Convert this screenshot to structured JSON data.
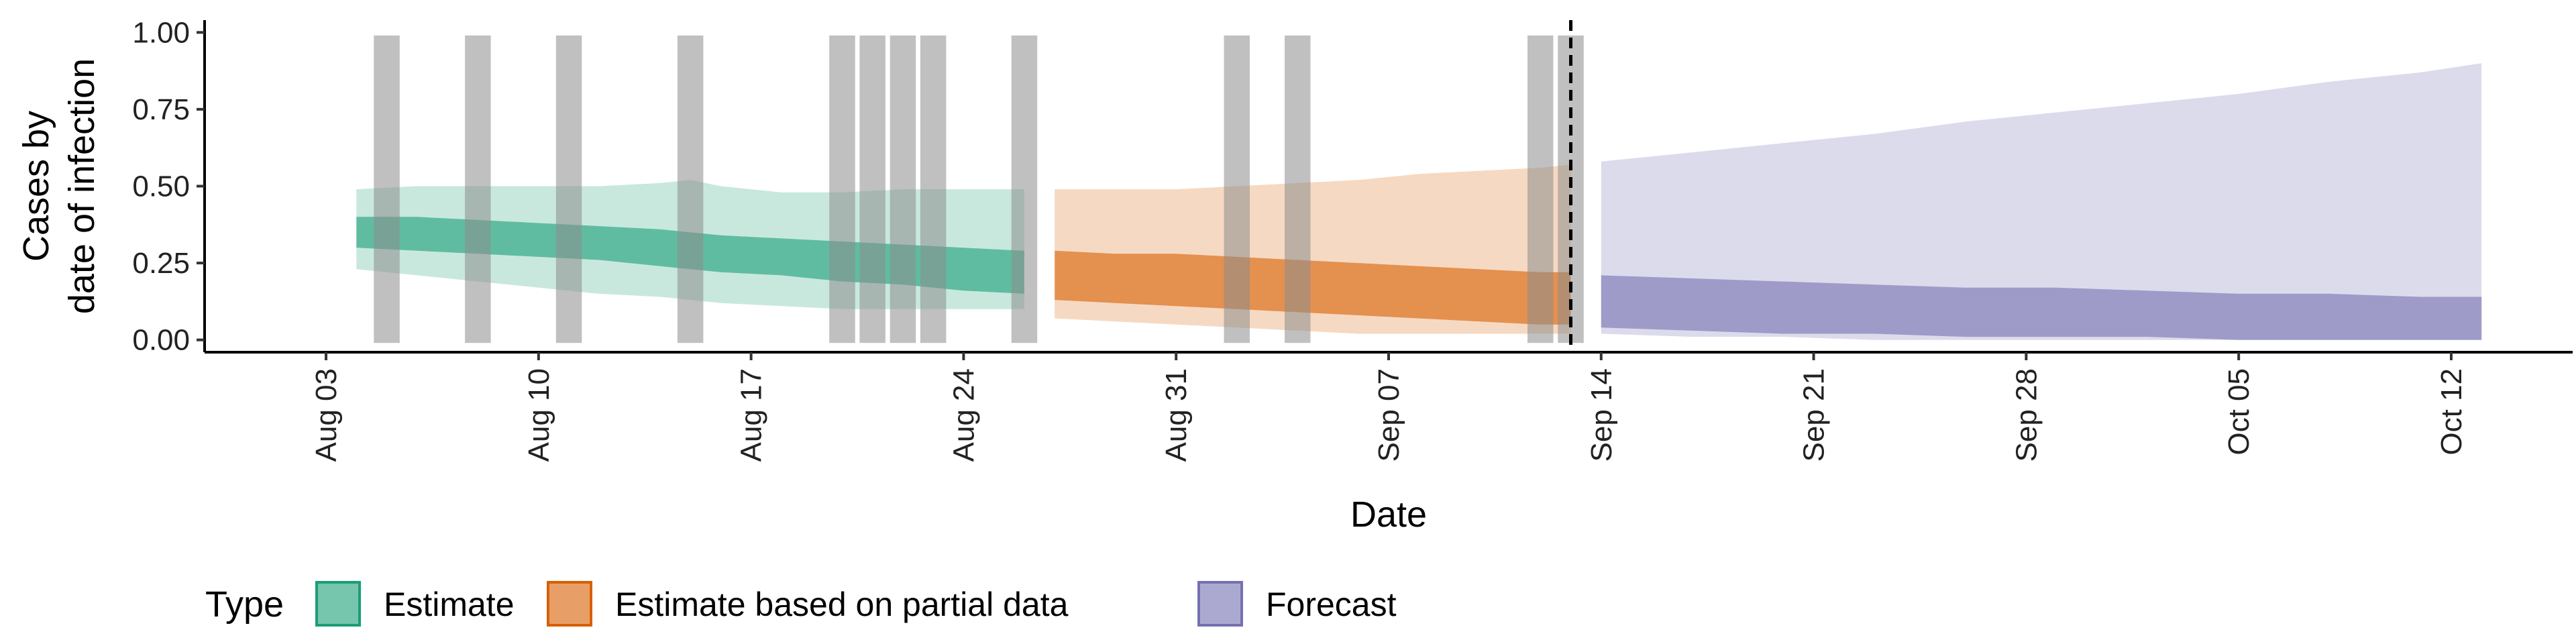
{
  "chart_data": {
    "type": "area",
    "xlabel": "Date",
    "ylabel_lines": [
      "Cases by",
      "date of infection"
    ],
    "xlim": [
      "2023-07-30",
      "2023-10-16"
    ],
    "ylim": [
      -0.04,
      1.04
    ],
    "y_ticks": [
      0.0,
      0.25,
      0.5,
      0.75,
      1.0
    ],
    "y_tick_labels": [
      "0.00",
      "0.25",
      "0.50",
      "0.75",
      "1.00"
    ],
    "x_ticks": [
      "2023-08-03",
      "2023-08-10",
      "2023-08-17",
      "2023-08-24",
      "2023-08-31",
      "2023-09-07",
      "2023-09-14",
      "2023-09-21",
      "2023-09-28",
      "2023-10-05",
      "2023-10-12"
    ],
    "x_tick_labels": [
      "Aug 03",
      "Aug 10",
      "Aug 17",
      "Aug 24",
      "Aug 31",
      "Sep 07",
      "Sep 14",
      "Sep 21",
      "Sep 28",
      "Oct 05",
      "Oct 12"
    ],
    "grid": false,
    "legend_position": "bottom-left",
    "legend": {
      "title": "Type",
      "entries": [
        {
          "label": "Estimate",
          "color": "#1b9e77"
        },
        {
          "label": "Estimate based on partial data",
          "color": "#d95f02"
        },
        {
          "label": "Forecast",
          "color": "#7570b3"
        }
      ]
    },
    "forecast_date": "2023-09-13",
    "highlight_dates": [
      "2023-08-05",
      "2023-08-08",
      "2023-08-11",
      "2023-08-15",
      "2023-08-20",
      "2023-08-21",
      "2023-08-22",
      "2023-08-23",
      "2023-08-26",
      "2023-09-02",
      "2023-09-04",
      "2023-09-12",
      "2023-09-13"
    ],
    "series": [
      {
        "name": "Estimate",
        "color": "#1b9e77",
        "x": [
          "2023-08-04",
          "2023-08-06",
          "2023-08-08",
          "2023-08-10",
          "2023-08-12",
          "2023-08-14",
          "2023-08-15",
          "2023-08-16",
          "2023-08-18",
          "2023-08-20",
          "2023-08-22",
          "2023-08-24",
          "2023-08-26"
        ],
        "lower_90": [
          0.23,
          0.21,
          0.19,
          0.17,
          0.15,
          0.14,
          0.13,
          0.12,
          0.11,
          0.1,
          0.1,
          0.1,
          0.1
        ],
        "lower_50": [
          0.3,
          0.29,
          0.28,
          0.27,
          0.26,
          0.24,
          0.23,
          0.22,
          0.21,
          0.19,
          0.18,
          0.16,
          0.15
        ],
        "upper_50": [
          0.4,
          0.4,
          0.39,
          0.38,
          0.37,
          0.36,
          0.35,
          0.34,
          0.33,
          0.32,
          0.31,
          0.3,
          0.29
        ],
        "upper_90": [
          0.49,
          0.5,
          0.5,
          0.5,
          0.5,
          0.51,
          0.52,
          0.5,
          0.48,
          0.48,
          0.49,
          0.49,
          0.49
        ]
      },
      {
        "name": "Estimate based on partial data",
        "color": "#d95f02",
        "x": [
          "2023-08-27",
          "2023-08-29",
          "2023-08-31",
          "2023-09-02",
          "2023-09-04",
          "2023-09-06",
          "2023-09-08",
          "2023-09-10",
          "2023-09-12",
          "2023-09-13"
        ],
        "lower_90": [
          0.07,
          0.06,
          0.05,
          0.04,
          0.03,
          0.02,
          0.02,
          0.02,
          0.02,
          0.02
        ],
        "lower_50": [
          0.13,
          0.12,
          0.11,
          0.1,
          0.09,
          0.08,
          0.07,
          0.06,
          0.05,
          0.05
        ],
        "upper_50": [
          0.29,
          0.28,
          0.28,
          0.27,
          0.26,
          0.25,
          0.24,
          0.23,
          0.22,
          0.22
        ],
        "upper_90": [
          0.49,
          0.49,
          0.49,
          0.5,
          0.51,
          0.52,
          0.54,
          0.55,
          0.56,
          0.57
        ]
      },
      {
        "name": "Forecast",
        "color": "#7570b3",
        "x": [
          "2023-09-14",
          "2023-09-17",
          "2023-09-20",
          "2023-09-23",
          "2023-09-26",
          "2023-09-29",
          "2023-10-02",
          "2023-10-05",
          "2023-10-08",
          "2023-10-11",
          "2023-10-13"
        ],
        "lower_90": [
          0.02,
          0.01,
          0.01,
          0.0,
          0.0,
          0.0,
          0.0,
          0.0,
          0.0,
          0.0,
          0.0
        ],
        "lower_50": [
          0.04,
          0.03,
          0.02,
          0.02,
          0.01,
          0.01,
          0.01,
          0.0,
          0.0,
          0.0,
          0.0
        ],
        "upper_50": [
          0.21,
          0.2,
          0.19,
          0.18,
          0.17,
          0.17,
          0.16,
          0.15,
          0.15,
          0.14,
          0.14
        ],
        "upper_90": [
          0.58,
          0.61,
          0.64,
          0.67,
          0.71,
          0.74,
          0.77,
          0.8,
          0.84,
          0.87,
          0.9
        ]
      }
    ]
  }
}
